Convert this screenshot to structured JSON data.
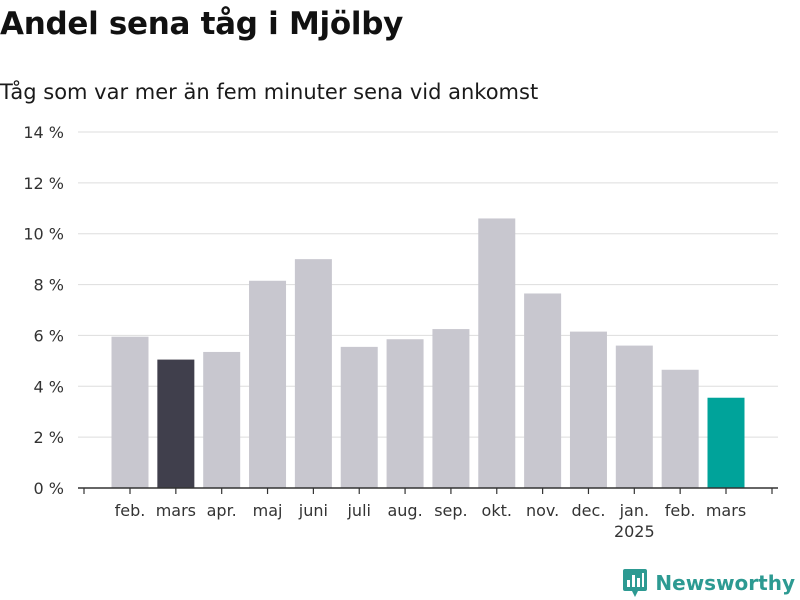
{
  "title": "Andel sena tåg i Mjölby",
  "subtitle": "Tåg som var mer än fem minuter sena vid ankomst",
  "brand": {
    "name": "Newsworthy",
    "color": "#2d9a92",
    "icon": "bar-chart-pin-icon"
  },
  "colors": {
    "default_bar": "#c8c7cf",
    "comparison_bar": "#403f4c",
    "highlight_bar": "#00a39a",
    "grid": "#dddddd",
    "axis": "#333333",
    "tick_text": "#333333"
  },
  "chart_data": {
    "type": "bar",
    "title": "Andel sena tåg i Mjölby",
    "subtitle": "Tåg som var mer än fem minuter sena vid ankomst",
    "categories": [
      "feb.",
      "mars",
      "apr.",
      "maj",
      "juni",
      "juli",
      "aug.",
      "sep.",
      "okt.",
      "nov.",
      "dec.",
      "jan.",
      "feb.",
      "mars"
    ],
    "category_sublabels": [
      "",
      "",
      "",
      "",
      "",
      "",
      "",
      "",
      "",
      "",
      "",
      "2025",
      "",
      ""
    ],
    "values": [
      5.95,
      5.05,
      5.35,
      8.15,
      9.0,
      5.55,
      5.85,
      6.25,
      10.6,
      7.65,
      6.15,
      5.6,
      4.65,
      3.55
    ],
    "bar_styles": [
      "default",
      "comparison",
      "default",
      "default",
      "default",
      "default",
      "default",
      "default",
      "default",
      "default",
      "default",
      "default",
      "default",
      "highlight"
    ],
    "yticks": [
      "0 %",
      "2 %",
      "4 %",
      "6 %",
      "8 %",
      "10 %",
      "12 %",
      "14 %"
    ],
    "ylim": [
      0,
      14
    ],
    "grid": true,
    "xlabel": "",
    "ylabel": ""
  }
}
